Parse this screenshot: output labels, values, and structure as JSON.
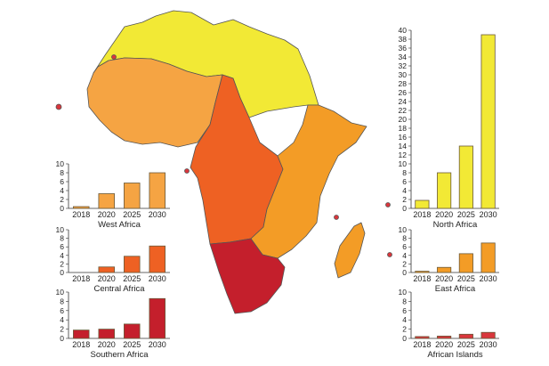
{
  "colors": {
    "north": "#f2e935",
    "west": "#f5a443",
    "central": "#ee6123",
    "east": "#f39c26",
    "southern": "#c41f2c",
    "islands": "#d9363c"
  },
  "chart_data": [
    {
      "type": "bar",
      "region": "North Africa",
      "xlabel": "North Africa",
      "categories": [
        "2018",
        "2020",
        "2025",
        "2030"
      ],
      "values": [
        1.8,
        8,
        14,
        39
      ],
      "ylim": [
        0,
        40
      ],
      "yticks": [
        "0",
        "2",
        "4",
        "6",
        "8",
        "10",
        "12",
        "14",
        "16",
        "18",
        "20",
        "22",
        "24",
        "26",
        "28",
        "30",
        "32",
        "34",
        "36",
        "38",
        "40"
      ],
      "color": "#f2e935"
    },
    {
      "type": "bar",
      "region": "West Africa",
      "xlabel": "West Africa",
      "categories": [
        "2018",
        "2020",
        "2025",
        "2030"
      ],
      "values": [
        0.4,
        3.3,
        5.7,
        8
      ],
      "ylim": [
        0,
        10
      ],
      "yticks": [
        "0",
        "2",
        "4",
        "6",
        "8",
        "10"
      ],
      "color": "#f5a443"
    },
    {
      "type": "bar",
      "region": "Central Africa",
      "xlabel": "Central Africa",
      "categories": [
        "2018",
        "2020",
        "2025",
        "2030"
      ],
      "values": [
        0,
        1.3,
        3.8,
        6.2
      ],
      "ylim": [
        0,
        10
      ],
      "yticks": [
        "0",
        "2",
        "4",
        "6",
        "8",
        "10"
      ],
      "color": "#ee6123"
    },
    {
      "type": "bar",
      "region": "Southern Africa",
      "xlabel": "Southern Africa",
      "categories": [
        "2018",
        "2020",
        "2025",
        "2030"
      ],
      "values": [
        1.8,
        2,
        3.1,
        8.6
      ],
      "ylim": [
        0,
        10
      ],
      "yticks": [
        "0",
        "2",
        "4",
        "6",
        "8",
        "10"
      ],
      "color": "#c41f2c"
    },
    {
      "type": "bar",
      "region": "East Africa",
      "xlabel": "East Africa",
      "categories": [
        "2018",
        "2020",
        "2025",
        "2030"
      ],
      "values": [
        0.3,
        1.2,
        4.4,
        6.9
      ],
      "ylim": [
        0,
        10
      ],
      "yticks": [
        "0",
        "2",
        "4",
        "6",
        "8",
        "10"
      ],
      "color": "#f39c26"
    },
    {
      "type": "bar",
      "region": "African Islands",
      "xlabel": "African Islands",
      "categories": [
        "2018",
        "2020",
        "2025",
        "2030"
      ],
      "values": [
        0.4,
        0.5,
        0.9,
        1.3
      ],
      "ylim": [
        0,
        10
      ],
      "yticks": [
        "0",
        "2",
        "4",
        "6",
        "8",
        "10"
      ],
      "color": "#d9363c"
    }
  ]
}
